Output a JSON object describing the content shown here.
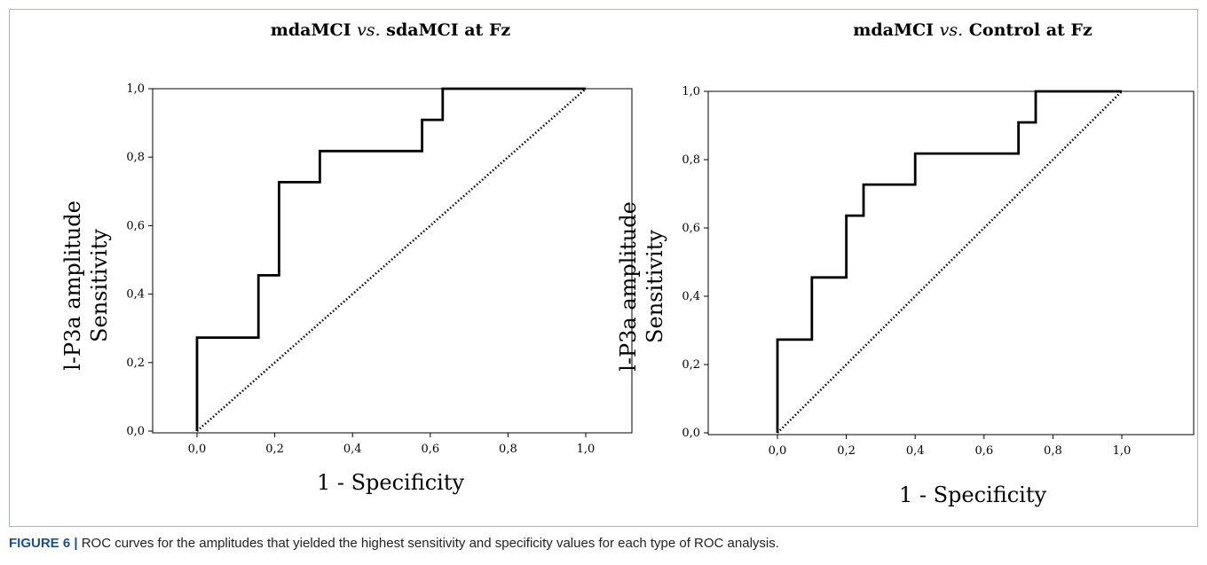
{
  "caption": {
    "label": "FIGURE 6 |",
    "text": " ROC curves for the amplitudes that yielded the highest sensitivity and specificity values for each type of ROC analysis."
  },
  "colors": {
    "curve": "#000000",
    "frame": "#aeb4bf",
    "caption_label": "#1a4f8b"
  },
  "chart_data": [
    {
      "type": "line",
      "title_main": "mdaMCI ",
      "title_italic": "vs.",
      "title_rest": " sdaMCI at Fz",
      "xlabel": "1 - Specificity",
      "ylabel_line1": "l-P3a amplitude",
      "ylabel_line2": "Sensitivity",
      "xlim": [
        0,
        1
      ],
      "ylim": [
        0,
        1
      ],
      "x_ticks": [
        "0,0",
        "0,2",
        "0,4",
        "0,6",
        "0,8",
        "1,0"
      ],
      "y_ticks": [
        "0,0",
        "0,2",
        "0,4",
        "0,6",
        "0,8",
        "1,0"
      ],
      "series": [
        {
          "style": "solid-step",
          "x": [
            0,
            0,
            0.158,
            0.158,
            0.211,
            0.211,
            0.316,
            0.316,
            0.579,
            0.579,
            0.632,
            0.632,
            1.0
          ],
          "y": [
            0,
            0.273,
            0.273,
            0.455,
            0.455,
            0.727,
            0.727,
            0.818,
            0.818,
            0.909,
            0.909,
            1.0,
            1.0
          ]
        },
        {
          "style": "dotted-diagonal",
          "x": [
            0,
            1
          ],
          "y": [
            0,
            1
          ]
        }
      ]
    },
    {
      "type": "line",
      "title_main": "mdaMCI ",
      "title_italic": "vs.",
      "title_rest": " Control at Fz",
      "xlabel": "1 - Specificity",
      "ylabel_line1": "l-P3a amplitude",
      "ylabel_line2": "Sensitivity",
      "xlim": [
        0,
        1
      ],
      "ylim": [
        0,
        1
      ],
      "x_ticks": [
        "0,0",
        "0,2",
        "0,4",
        "0,6",
        "0,8",
        "1,0"
      ],
      "y_ticks": [
        "0,0",
        "0,2",
        "0,4",
        "0,6",
        "0,8",
        "1,0"
      ],
      "series": [
        {
          "style": "solid-step",
          "x": [
            0,
            0,
            0.1,
            0.1,
            0.2,
            0.2,
            0.25,
            0.25,
            0.4,
            0.4,
            0.7,
            0.7,
            0.75,
            0.75,
            1.0
          ],
          "y": [
            0,
            0.273,
            0.273,
            0.455,
            0.455,
            0.636,
            0.636,
            0.727,
            0.727,
            0.818,
            0.818,
            0.909,
            0.909,
            1.0,
            1.0
          ]
        },
        {
          "style": "dotted-diagonal",
          "x": [
            0,
            1
          ],
          "y": [
            0,
            1
          ]
        }
      ]
    }
  ]
}
